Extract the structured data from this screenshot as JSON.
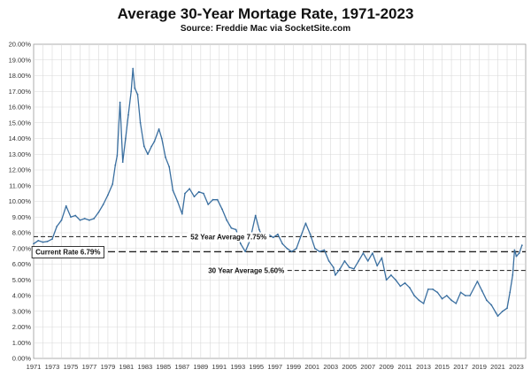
{
  "header": {
    "title": "Average 30-Year Mortage Rate, 1971-2023",
    "subtitle": "Source: Freddie Mac via SocketSite.com"
  },
  "chart_data": {
    "type": "line",
    "title": "Average 30-Year Mortage Rate, 1971-2023",
    "subtitle": "Source: Freddie Mac via SocketSite.com",
    "xlabel": "",
    "ylabel": "",
    "xlim": [
      1971,
      2024
    ],
    "ylim": [
      0,
      20
    ],
    "grid": true,
    "line_color": "#3a6fa0",
    "x_tick_labels": [
      "1971",
      "1973",
      "1975",
      "1977",
      "1979",
      "1981",
      "1983",
      "1985",
      "1987",
      "1989",
      "1991",
      "1993",
      "1995",
      "1997",
      "1999",
      "2001",
      "2003",
      "2005",
      "2007",
      "2009",
      "2011",
      "2013",
      "2015",
      "2017",
      "2019",
      "2021",
      "2023"
    ],
    "y_tick_labels": [
      "0.00%",
      "1.00%",
      "2.00%",
      "3.00%",
      "4.00%",
      "5.00%",
      "6.00%",
      "7.00%",
      "8.00%",
      "9.00%",
      "10.00%",
      "11.00%",
      "12.00%",
      "13.00%",
      "14.00%",
      "15.00%",
      "16.00%",
      "17.00%",
      "18.00%",
      "19.00%",
      "20.00%"
    ],
    "series": [
      {
        "x": [
          1971.0,
          1971.5,
          1972.0,
          1972.5,
          1973.0,
          1973.5,
          1974.0,
          1974.5,
          1975.0,
          1975.5,
          1976.0,
          1976.5,
          1977.0,
          1977.5,
          1978.0,
          1978.5,
          1979.0,
          1979.5,
          1979.8,
          1980.0,
          1980.3,
          1980.6,
          1980.9,
          1981.2,
          1981.5,
          1981.7,
          1981.9,
          1982.2,
          1982.5,
          1982.9,
          1983.3,
          1983.7,
          1984.0,
          1984.5,
          1984.8,
          1985.2,
          1985.6,
          1986.0,
          1986.5,
          1987.0,
          1987.3,
          1987.8,
          1988.3,
          1988.8,
          1989.3,
          1989.8,
          1990.3,
          1990.8,
          1991.3,
          1991.8,
          1992.3,
          1992.8,
          1993.3,
          1993.8,
          1994.3,
          1994.9,
          1995.3,
          1995.8,
          1996.3,
          1996.8,
          1997.3,
          1997.8,
          1998.3,
          1998.8,
          1999.3,
          1999.8,
          2000.3,
          2000.8,
          2001.3,
          2001.8,
          2002.3,
          2002.8,
          2003.3,
          2003.5,
          2004.0,
          2004.5,
          2005.0,
          2005.5,
          2006.0,
          2006.5,
          2007.0,
          2007.5,
          2008.0,
          2008.5,
          2009.0,
          2009.5,
          2010.0,
          2010.5,
          2011.0,
          2011.5,
          2012.0,
          2012.5,
          2013.0,
          2013.5,
          2014.0,
          2014.5,
          2015.0,
          2015.5,
          2016.0,
          2016.5,
          2017.0,
          2017.5,
          2018.0,
          2018.8,
          2019.3,
          2019.8,
          2020.3,
          2020.8,
          2021.0,
          2021.5,
          2022.0,
          2022.3,
          2022.6,
          2022.8,
          2023.0,
          2023.3,
          2023.6
        ],
        "y": [
          7.3,
          7.5,
          7.4,
          7.45,
          7.6,
          8.4,
          8.8,
          9.7,
          9.0,
          9.1,
          8.8,
          8.9,
          8.8,
          8.9,
          9.3,
          9.8,
          10.4,
          11.1,
          12.3,
          12.9,
          16.3,
          12.5,
          14.0,
          15.5,
          17.0,
          18.45,
          17.2,
          16.8,
          15.0,
          13.5,
          13.0,
          13.5,
          13.8,
          14.6,
          14.0,
          12.8,
          12.2,
          10.7,
          10.0,
          9.2,
          10.5,
          10.8,
          10.3,
          10.6,
          10.5,
          9.8,
          10.1,
          10.1,
          9.5,
          8.8,
          8.3,
          8.2,
          7.3,
          6.8,
          7.5,
          9.1,
          8.2,
          7.5,
          7.9,
          7.7,
          7.9,
          7.3,
          7.0,
          6.8,
          7.0,
          7.8,
          8.6,
          7.9,
          7.0,
          6.8,
          6.9,
          6.2,
          5.8,
          5.3,
          5.7,
          6.2,
          5.8,
          5.7,
          6.2,
          6.7,
          6.2,
          6.7,
          5.9,
          6.4,
          5.0,
          5.3,
          5.0,
          4.6,
          4.8,
          4.5,
          4.0,
          3.7,
          3.5,
          4.4,
          4.4,
          4.2,
          3.8,
          4.0,
          3.7,
          3.5,
          4.2,
          4.0,
          4.0,
          4.9,
          4.3,
          3.7,
          3.4,
          2.9,
          2.7,
          3.0,
          3.2,
          4.2,
          5.3,
          6.9,
          6.5,
          6.7,
          7.2
        ]
      }
    ],
    "annotations": [
      {
        "label": "52 Year Average 7.75%",
        "value": 7.75
      },
      {
        "label": "Current Rate 6.79%",
        "value": 6.79
      },
      {
        "label": "30 Year Average 5.60%",
        "value": 5.6
      }
    ]
  }
}
